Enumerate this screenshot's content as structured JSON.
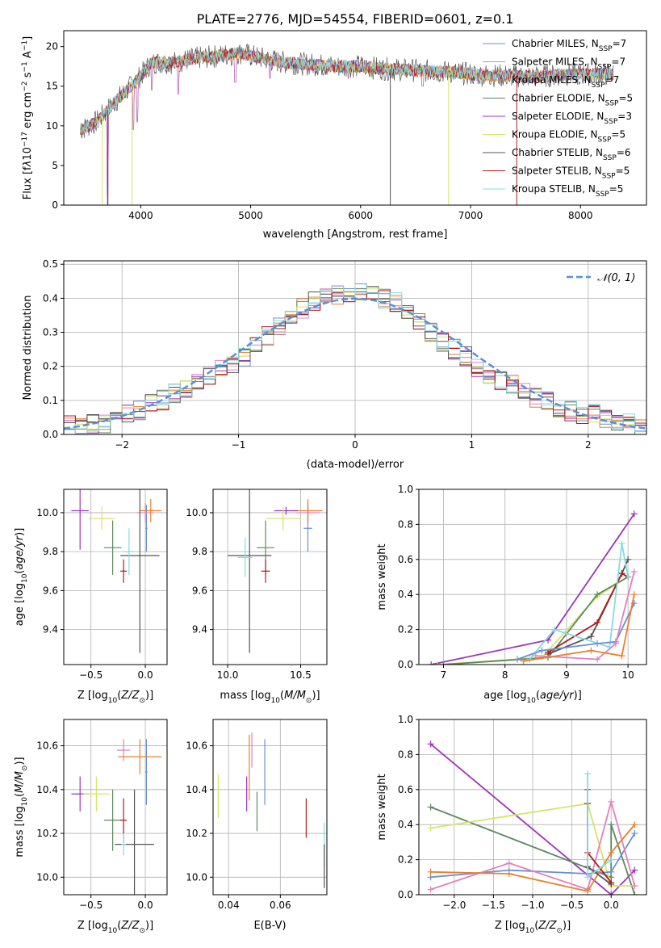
{
  "title": "PLATE=2776, MJD=54554, FIBERID=0601, z=0.1",
  "colors": {
    "Chabrier MILES": "#6a8fd6",
    "Salpeter MILES": "#e37fbf",
    "Kroupa MILES": "#e8802a",
    "Chabrier ELODIE": "#5b8a5e",
    "Salpeter ELODIE": "#9b35b8",
    "Kroupa ELODIE": "#d6e46a",
    "Chabrier STELIB": "#555555",
    "Salpeter STELIB": "#b01a1a",
    "Kroupa STELIB": "#86dbe0",
    "normal": "#5b8fd8"
  },
  "chart_data": [
    {
      "type": "line",
      "xlabel": "wavelength [Angstrom, rest frame]",
      "ylabel": "Flux [f_λ10^-17 erg cm^-2 s^-1 A^-1]",
      "xlim": [
        3300,
        8600
      ],
      "ylim": [
        0,
        22
      ],
      "xticks": [
        4000,
        5000,
        6000,
        7000,
        8000
      ],
      "yticks": [
        0,
        5,
        10,
        15,
        20
      ],
      "legend_position": "right",
      "legend": [
        {
          "name": "Chabrier MILES",
          "nssp": "7"
        },
        {
          "name": "Salpeter MILES",
          "nssp": "7"
        },
        {
          "name": "Kroupa MILES",
          "nssp": "7"
        },
        {
          "name": "Chabrier ELODIE",
          "nssp": "5"
        },
        {
          "name": "Salpeter ELODIE",
          "nssp": "3"
        },
        {
          "name": "Kroupa ELODIE",
          "nssp": "5"
        },
        {
          "name": "Chabrier STELIB",
          "nssp": "6"
        },
        {
          "name": "Salpeter STELIB",
          "nssp": "5"
        },
        {
          "name": "Kroupa STELIB",
          "nssp": "5"
        }
      ],
      "x": [
        3450,
        3600,
        3800,
        3950,
        4100,
        4300,
        4500,
        4700,
        4900,
        5100,
        5300,
        5500,
        5800,
        6000,
        6200,
        6500,
        6800,
        7000,
        7300,
        7600,
        7900,
        8200
      ],
      "y": [
        9.5,
        10.5,
        13.5,
        15.5,
        18.0,
        18.0,
        18.5,
        18.8,
        19.2,
        18.5,
        18.0,
        17.8,
        17.5,
        17.5,
        17.2,
        17.0,
        16.8,
        16.5,
        16.3,
        16.2,
        16.5,
        16.5
      ],
      "grid": false
    },
    {
      "type": "line",
      "xlabel": "(data-model)/error",
      "ylabel": "Normed distribution",
      "xlim": [
        -2.5,
        2.5
      ],
      "ylim": [
        0,
        0.51
      ],
      "xticks": [
        -2,
        -1,
        0,
        1,
        2
      ],
      "yticks": [
        0.0,
        0.1,
        0.2,
        0.3,
        0.4,
        0.5
      ],
      "grid": true,
      "legend_position": "top-right",
      "normal_label": "𝒩(0, 1)",
      "bin_centers": [
        -2.45,
        -2.35,
        -2.25,
        -2.15,
        -2.05,
        -1.95,
        -1.85,
        -1.75,
        -1.65,
        -1.55,
        -1.45,
        -1.35,
        -1.25,
        -1.15,
        -1.05,
        -0.95,
        -0.85,
        -0.75,
        -0.65,
        -0.55,
        -0.45,
        -0.35,
        -0.25,
        -0.15,
        -0.05,
        0.05,
        0.15,
        0.25,
        0.35,
        0.45,
        0.55,
        0.65,
        0.75,
        0.85,
        0.95,
        1.05,
        1.15,
        1.25,
        1.35,
        1.45,
        1.55,
        1.65,
        1.75,
        1.85,
        1.95,
        2.05,
        2.15,
        2.25,
        2.35,
        2.45
      ],
      "hist_base": [
        0.025,
        0.02,
        0.03,
        0.03,
        0.04,
        0.06,
        0.07,
        0.09,
        0.1,
        0.12,
        0.13,
        0.15,
        0.17,
        0.19,
        0.21,
        0.23,
        0.26,
        0.29,
        0.32,
        0.35,
        0.37,
        0.39,
        0.4,
        0.41,
        0.41,
        0.42,
        0.41,
        0.4,
        0.39,
        0.36,
        0.33,
        0.3,
        0.27,
        0.25,
        0.23,
        0.2,
        0.18,
        0.16,
        0.15,
        0.13,
        0.11,
        0.1,
        0.08,
        0.07,
        0.06,
        0.06,
        0.05,
        0.04,
        0.035,
        0.02
      ]
    },
    {
      "type": "scatter",
      "xlabel": "Z [log10(Z/Z⊙)]",
      "ylabel": "age  [log10(age/yr)]",
      "xlim": [
        -0.75,
        0.2
      ],
      "ylim": [
        9.22,
        10.12
      ],
      "xticks": [
        -0.5,
        0.0
      ],
      "yticks": [
        9.4,
        9.6,
        9.8,
        10.0
      ],
      "grid": true,
      "points": [
        {
          "m": "Chabrier MILES",
          "x": 0.01,
          "y": 9.92,
          "xerr": 0.01,
          "yerr": 0.12
        },
        {
          "m": "Salpeter MILES",
          "x": 0.0,
          "y": 10.0,
          "xerr": 0.08,
          "yerr": 0.05
        },
        {
          "m": "Kroupa MILES",
          "x": 0.05,
          "y": 10.01,
          "xerr": 0.1,
          "yerr": 0.06
        },
        {
          "m": "Chabrier ELODIE",
          "x": -0.3,
          "y": 9.82,
          "xerr": 0.08,
          "yerr": 0.14
        },
        {
          "m": "Salpeter ELODIE",
          "x": -0.6,
          "y": 10.01,
          "xerr": 0.08,
          "yerr": 0.2
        },
        {
          "m": "Kroupa ELODIE",
          "x": -0.4,
          "y": 9.97,
          "xerr": 0.12,
          "yerr": 0.06
        },
        {
          "m": "Chabrier STELIB",
          "x": -0.05,
          "y": 9.78,
          "xerr": 0.18,
          "yerr": 0.5
        },
        {
          "m": "Salpeter STELIB",
          "x": -0.2,
          "y": 9.7,
          "xerr": 0.03,
          "yerr": 0.06
        },
        {
          "m": "Kroupa STELIB",
          "x": -0.15,
          "y": 9.8,
          "xerr": 0.05,
          "yerr": 0.12
        }
      ]
    },
    {
      "type": "scatter",
      "xlabel": "mass [log10(M/M⊙)]",
      "ylabel": "",
      "xlim": [
        9.9,
        10.68
      ],
      "ylim": [
        9.22,
        10.12
      ],
      "xticks": [
        10.0,
        10.5
      ],
      "yticks": [
        9.4,
        9.6,
        9.8,
        10.0
      ],
      "grid": true,
      "points": [
        {
          "m": "Chabrier MILES",
          "x": 10.55,
          "y": 9.92,
          "xerr": 0.03,
          "yerr": 0.12
        },
        {
          "m": "Salpeter MILES",
          "x": 10.55,
          "y": 10.0,
          "xerr": 0.08,
          "yerr": 0.05
        },
        {
          "m": "Kroupa MILES",
          "x": 10.55,
          "y": 10.01,
          "xerr": 0.1,
          "yerr": 0.06
        },
        {
          "m": "Chabrier ELODIE",
          "x": 10.26,
          "y": 9.82,
          "xerr": 0.06,
          "yerr": 0.14
        },
        {
          "m": "Salpeter ELODIE",
          "x": 10.4,
          "y": 10.01,
          "xerr": 0.08,
          "yerr": 0.02
        },
        {
          "m": "Kroupa ELODIE",
          "x": 10.38,
          "y": 9.97,
          "xerr": 0.12,
          "yerr": 0.06
        },
        {
          "m": "Chabrier STELIB",
          "x": 10.15,
          "y": 9.78,
          "xerr": 0.15,
          "yerr": 0.5
        },
        {
          "m": "Salpeter STELIB",
          "x": 10.26,
          "y": 9.7,
          "xerr": 0.03,
          "yerr": 0.06
        },
        {
          "m": "Kroupa STELIB",
          "x": 10.12,
          "y": 9.77,
          "xerr": 0.05,
          "yerr": 0.1
        }
      ]
    },
    {
      "type": "line",
      "xlabel": "age  [log10(age/yr)]",
      "ylabel": "mass weight",
      "xlim": [
        6.6,
        10.3
      ],
      "ylim": [
        0,
        1.0
      ],
      "xticks": [
        7,
        8,
        9,
        10
      ],
      "yticks": [
        0.0,
        0.2,
        0.4,
        0.6,
        0.8,
        1.0
      ],
      "grid": true,
      "series": [
        {
          "m": "Salpeter ELODIE",
          "x": [
            6.8,
            8.7,
            10.1
          ],
          "y": [
            0.0,
            0.14,
            0.86
          ]
        },
        {
          "m": "Kroupa ELODIE",
          "x": [
            6.9,
            8.6,
            9.5,
            10.0
          ],
          "y": [
            0.0,
            0.04,
            0.39,
            0.5
          ]
        },
        {
          "m": "Chabrier ELODIE",
          "x": [
            7.0,
            8.7,
            9.5,
            10.0
          ],
          "y": [
            0.0,
            0.04,
            0.4,
            0.5
          ]
        },
        {
          "m": "Chabrier STELIB",
          "x": [
            8.7,
            9.4,
            9.9,
            10.0
          ],
          "y": [
            0.06,
            0.16,
            0.52,
            0.6
          ]
        },
        {
          "m": "Salpeter STELIB",
          "x": [
            8.7,
            9.5,
            9.9,
            10.0
          ],
          "y": [
            0.07,
            0.24,
            0.52,
            0.5
          ]
        },
        {
          "m": "Kroupa STELIB",
          "x": [
            8.4,
            8.8,
            9.7,
            9.9,
            10.0
          ],
          "y": [
            0.03,
            0.2,
            0.1,
            0.69,
            0.5
          ]
        },
        {
          "m": "Chabrier MILES",
          "x": [
            8.2,
            8.6,
            9.5,
            9.8,
            10.1
          ],
          "y": [
            0.03,
            0.08,
            0.12,
            0.13,
            0.35
          ]
        },
        {
          "m": "Salpeter MILES",
          "x": [
            8.5,
            9.5,
            9.8,
            10.1
          ],
          "y": [
            0.05,
            0.03,
            0.12,
            0.53
          ]
        },
        {
          "m": "Kroupa MILES",
          "x": [
            8.3,
            9.4,
            9.9,
            10.1
          ],
          "y": [
            0.02,
            0.08,
            0.05,
            0.4
          ]
        }
      ]
    },
    {
      "type": "scatter",
      "xlabel": "Z [log10(Z/Z⊙)]",
      "ylabel": "mass [log10(M/M⊙)]",
      "xlim": [
        -0.75,
        0.2
      ],
      "ylim": [
        9.92,
        10.72
      ],
      "xticks": [
        -0.5,
        0.0
      ],
      "yticks": [
        10.0,
        10.2,
        10.4,
        10.6
      ],
      "grid": true,
      "points": [
        {
          "m": "Chabrier MILES",
          "x": 0.01,
          "y": 10.48,
          "xerr": 0.01,
          "yerr": 0.15
        },
        {
          "m": "Salpeter MILES",
          "x": -0.2,
          "y": 10.58,
          "xerr": 0.06,
          "yerr": 0.05
        },
        {
          "m": "Kroupa MILES",
          "x": -0.05,
          "y": 10.55,
          "xerr": 0.2,
          "yerr": 0.08
        },
        {
          "m": "Chabrier ELODIE",
          "x": -0.3,
          "y": 10.26,
          "xerr": 0.08,
          "yerr": 0.14
        },
        {
          "m": "Salpeter ELODIE",
          "x": -0.6,
          "y": 10.38,
          "xerr": 0.08,
          "yerr": 0.08
        },
        {
          "m": "Kroupa ELODIE",
          "x": -0.45,
          "y": 10.38,
          "xerr": 0.12,
          "yerr": 0.08
        },
        {
          "m": "Chabrier STELIB",
          "x": -0.1,
          "y": 10.15,
          "xerr": 0.18,
          "yerr": 0.25
        },
        {
          "m": "Salpeter STELIB",
          "x": -0.2,
          "y": 10.26,
          "xerr": 0.03,
          "yerr": 0.1
        },
        {
          "m": "Kroupa STELIB",
          "x": -0.2,
          "y": 10.15,
          "xerr": 0.02,
          "yerr": 0.05
        }
      ]
    },
    {
      "type": "scatter",
      "xlabel": "E(B-V)",
      "ylabel": "",
      "xlim": [
        0.034,
        0.078
      ],
      "ylim": [
        9.92,
        10.72
      ],
      "xticks": [
        0.04,
        0.06
      ],
      "yticks": [
        10.0,
        10.2,
        10.4,
        10.6
      ],
      "grid": true,
      "points": [
        {
          "m": "Kroupa ELODIE",
          "x": 0.036,
          "y": 10.37,
          "yerr": 0.1
        },
        {
          "m": "Salpeter ELODIE",
          "x": 0.047,
          "y": 10.38,
          "yerr": 0.08
        },
        {
          "m": "Salpeter MILES",
          "x": 0.049,
          "y": 10.58,
          "yerr": 0.08
        },
        {
          "m": "Chabrier ELODIE",
          "x": 0.051,
          "y": 10.3,
          "yerr": 0.09
        },
        {
          "m": "Kroupa MILES",
          "x": 0.048,
          "y": 10.5,
          "yerr": 0.15
        },
        {
          "m": "Chabrier MILES",
          "x": 0.054,
          "y": 10.48,
          "yerr": 0.15
        },
        {
          "m": "Salpeter STELIB",
          "x": 0.07,
          "y": 10.27,
          "yerr": 0.09
        },
        {
          "m": "Kroupa STELIB",
          "x": 0.077,
          "y": 10.15,
          "yerr": 0.1
        },
        {
          "m": "Chabrier STELIB",
          "x": 0.077,
          "y": 10.05,
          "yerr": 0.1
        }
      ]
    },
    {
      "type": "line",
      "xlabel": "Z [log10(Z/Z⊙)]",
      "ylabel": "mass weight",
      "xlim": [
        -2.45,
        0.45
      ],
      "ylim": [
        0,
        1.0
      ],
      "xticks": [
        -2.0,
        -1.5,
        -1.0,
        -0.5,
        0.0
      ],
      "yticks": [
        0.0,
        0.2,
        0.4,
        0.6,
        0.8,
        1.0
      ],
      "grid": true,
      "series": [
        {
          "m": "Salpeter ELODIE",
          "x": [
            -2.3,
            0.0,
            0.3
          ],
          "y": [
            0.86,
            0.0,
            0.14
          ]
        },
        {
          "m": "Chabrier ELODIE",
          "x": [
            -2.3,
            0.0,
            0.0,
            0.3
          ],
          "y": [
            0.5,
            0.1,
            0.4,
            0.0
          ]
        },
        {
          "m": "Kroupa ELODIE",
          "x": [
            -2.3,
            -0.3,
            0.0,
            0.3
          ],
          "y": [
            0.38,
            0.52,
            0.05,
            0.05
          ]
        },
        {
          "m": "Chabrier MILES",
          "x": [
            -2.3,
            -1.3,
            -0.3,
            0.0,
            0.3
          ],
          "y": [
            0.1,
            0.14,
            0.12,
            0.13,
            0.35
          ]
        },
        {
          "m": "Salpeter MILES",
          "x": [
            -2.3,
            -1.3,
            -0.3,
            0.0,
            0.3
          ],
          "y": [
            0.03,
            0.18,
            0.03,
            0.53,
            0.05
          ]
        },
        {
          "m": "Kroupa MILES",
          "x": [
            -2.3,
            -1.3,
            -0.3,
            0.0,
            0.3
          ],
          "y": [
            0.13,
            0.12,
            0.02,
            0.24,
            0.4
          ]
        },
        {
          "m": "Chabrier STELIB",
          "x": [
            -0.3,
            -0.3,
            0.0
          ],
          "y": [
            0.6,
            0.16,
            0.06
          ]
        },
        {
          "m": "Salpeter STELIB",
          "x": [
            -0.3,
            -0.3,
            0.0
          ],
          "y": [
            0.52,
            0.24,
            0.07
          ]
        },
        {
          "m": "Kroupa STELIB",
          "x": [
            -0.3,
            -0.3,
            0.0
          ],
          "y": [
            0.69,
            0.1,
            0.2
          ]
        }
      ]
    }
  ]
}
